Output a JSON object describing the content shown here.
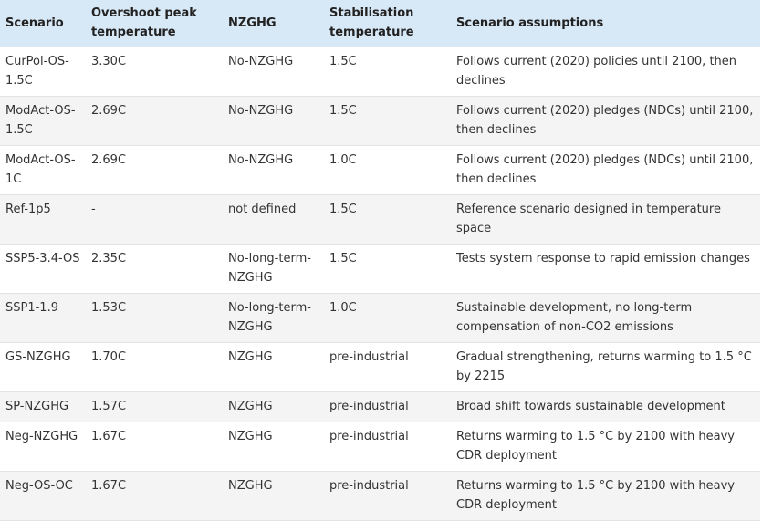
{
  "headers": [
    "Scenario",
    "Overshoot peak temperature",
    "NZGHG",
    "Stabilisation temperature",
    "Scenario assumptions"
  ],
  "rows": [
    [
      "CurPol-OS-1.5C",
      "3.30C",
      "No-NZGHG",
      "1.5C",
      "Follows current (2020) policies until 2100, then declines"
    ],
    [
      "ModAct-OS-1.5C",
      "2.69C",
      "No-NZGHG",
      "1.5C",
      "Follows current (2020) pledges (NDCs) until 2100, then declines"
    ],
    [
      "ModAct-OS-1C",
      "2.69C",
      "No-NZGHG",
      "1.0C",
      "Follows current (2020) pledges (NDCs) until 2100, then declines"
    ],
    [
      "Ref-1p5",
      "-",
      "not defined",
      "1.5C",
      "Reference scenario designed in temperature space"
    ],
    [
      "SSP5-3.4-OS",
      "2.35C",
      "No-long-term-NZGHG",
      "1.5C",
      "Tests system response to rapid emission changes"
    ],
    [
      "SSP1-1.9",
      "1.53C",
      "No-long-term-NZGHG",
      "1.0C",
      "Sustainable development, no long-term compensation of non-CO2 emissions"
    ],
    [
      "GS-NZGHG",
      "1.70C",
      "NZGHG",
      "pre-industrial",
      "Gradual strengthening, returns warming to 1.5 °C by 2215"
    ],
    [
      "SP-NZGHG",
      "1.57C",
      "NZGHG",
      "pre-industrial",
      "Broad shift towards sustainable development"
    ],
    [
      "Neg-NZGHG",
      "1.67C",
      "NZGHG",
      "pre-industrial",
      "Returns warming to 1.5 °C by 2100 with heavy CDR deployment"
    ],
    [
      "Neg-OS-OC",
      "1.67C",
      "NZGHG",
      "pre-industrial",
      "Returns warming to 1.5 °C by 2100 with heavy CDR deployment"
    ]
  ]
}
